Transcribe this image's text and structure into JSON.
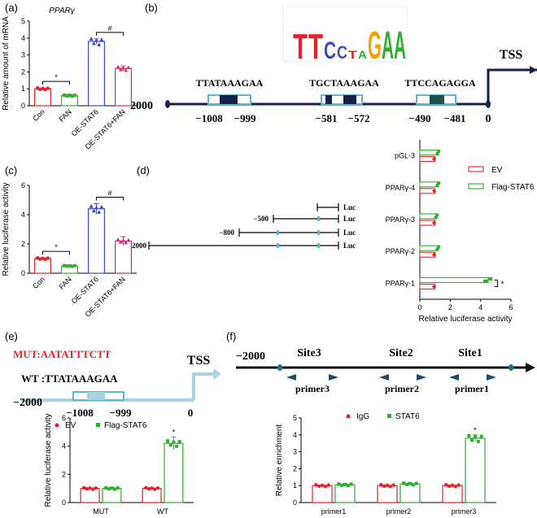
{
  "panel_labels": {
    "a": "(a)",
    "b": "(b)",
    "c": "(c)",
    "d": "(d)",
    "e": "(e)",
    "f": "(f)"
  },
  "colors": {
    "red": "#e8202a",
    "green": "#2fae2f",
    "blue": "#3f49c4",
    "pink": "#d9287a",
    "navy": "#1b2a5a",
    "teal": "#5fb8c8",
    "dark_navy": "#16214a",
    "dark_teal": "#1f4f4a",
    "light_blue": "#a9d3e2"
  },
  "panel_b": {
    "tss": "TSS",
    "start": "−2000",
    "end": "0",
    "sites": [
      {
        "seq": "TTATAAAGAA",
        "left": "−1008",
        "right": "−999"
      },
      {
        "seq": "TGCTAAAGAA",
        "left": "−581",
        "right": "−572"
      },
      {
        "seq": "TTCCAGAGGA",
        "left": "−490",
        "right": "−481"
      }
    ],
    "motif_letters": [
      "T",
      "T",
      "C",
      "C",
      "T",
      "A",
      "G",
      "A",
      "A"
    ]
  },
  "panel_d_constructs": {
    "luc": "Luc",
    "starts": [
      "",
      "−500",
      "−800",
      "−2000"
    ]
  },
  "panel_e": {
    "mut_label": "MUT:",
    "mut_seq": "AATATTTCTT",
    "wt_label": "WT :",
    "wt_seq": "TTATAAAGAA",
    "tss": "TSS",
    "start": "−2000",
    "left": "−1008",
    "right": "−999",
    "end": "0"
  },
  "panel_f": {
    "start": "−2000",
    "sites": [
      "Site3",
      "Site2",
      "Site1"
    ],
    "primers": [
      "primer3",
      "primer2",
      "primer1"
    ]
  },
  "chart_data": [
    {
      "id": "a",
      "type": "bar",
      "title": "PPARγ",
      "ylabel": "Relative amount of mRNA",
      "categories": [
        "Con",
        "FAN",
        "OE-STAT6",
        "OE-STAT6+FAN"
      ],
      "values": [
        1.0,
        0.6,
        3.8,
        2.2
      ],
      "errors": [
        0.05,
        0.08,
        0.15,
        0.15
      ],
      "ylim": [
        0,
        5
      ],
      "yticks": [
        0,
        1,
        2,
        3,
        4,
        5
      ],
      "significance": [
        {
          "pair": [
            0,
            1
          ],
          "label": "*"
        },
        {
          "pair": [
            2,
            3
          ],
          "label": "#"
        }
      ]
    },
    {
      "id": "c",
      "type": "bar",
      "ylabel": "Relative luciferase activity",
      "categories": [
        "Con",
        "FAN",
        "OE-STAT6",
        "OE-STAT6+FAN"
      ],
      "values": [
        1.0,
        0.5,
        4.4,
        2.2
      ],
      "errors": [
        0.05,
        0.08,
        0.35,
        0.3
      ],
      "ylim": [
        0,
        6
      ],
      "yticks": [
        0,
        2,
        4,
        6
      ],
      "significance": [
        {
          "pair": [
            0,
            1
          ],
          "label": "*"
        },
        {
          "pair": [
            2,
            3
          ],
          "label": "#"
        }
      ]
    },
    {
      "id": "d",
      "type": "bar",
      "orientation": "horizontal",
      "xlabel": "Relative luciferase activity",
      "categories": [
        "pGL-3",
        "PPARγ-4",
        "PPARγ-3",
        "PPARγ-2",
        "PPARγ-1"
      ],
      "series": [
        {
          "name": "EV",
          "values": [
            1,
            1,
            1,
            1,
            1
          ]
        },
        {
          "name": "Flag-STAT6",
          "values": [
            1.2,
            1.2,
            1.1,
            1.2,
            4.5
          ]
        }
      ],
      "errors": [
        0.1,
        0.1,
        0.1,
        0.1,
        0.3
      ],
      "xlim": [
        0,
        6
      ],
      "xticks": [
        0,
        2,
        4,
        6
      ],
      "significance_label": "*",
      "legend": "top-right"
    },
    {
      "id": "e",
      "type": "bar",
      "ylabel": "Relative luciferase activity",
      "categories": [
        "MUT",
        "WT"
      ],
      "series": [
        {
          "name": "EV",
          "values": [
            1.0,
            1.0
          ]
        },
        {
          "name": "Flag-STAT6",
          "values": [
            1.0,
            4.2
          ]
        }
      ],
      "errors": [
        0.1,
        0.45
      ],
      "ylim": [
        0,
        6
      ],
      "yticks": [
        0,
        2,
        4,
        6
      ],
      "significance_label": "*",
      "legend": "top"
    },
    {
      "id": "f",
      "type": "bar",
      "ylabel": "Relative enrichment",
      "categories": [
        "primer1",
        "primer2",
        "primer3"
      ],
      "series": [
        {
          "name": "IgG",
          "values": [
            1.0,
            1.0,
            1.0
          ]
        },
        {
          "name": "STAT6",
          "values": [
            1.05,
            1.1,
            3.8
          ]
        }
      ],
      "errors": [
        0.08,
        0.08,
        0.2
      ],
      "ylim": [
        0,
        5
      ],
      "yticks": [
        0,
        1,
        2,
        3,
        4,
        5
      ],
      "significance_label": "*",
      "legend": "top"
    }
  ]
}
